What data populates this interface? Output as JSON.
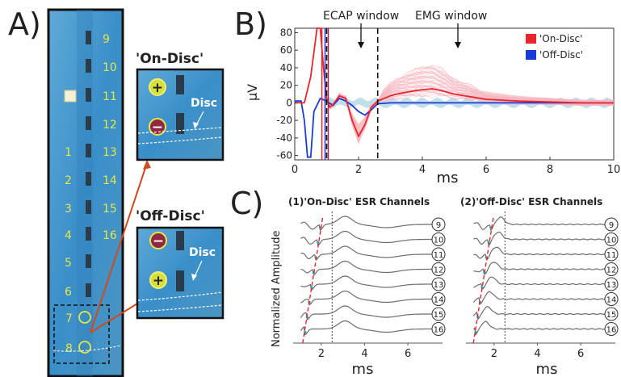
{
  "panelA": {
    "letter": "A)",
    "electrode_numbers_left": [
      "1",
      "2",
      "3",
      "4",
      "5",
      "6",
      "7",
      "8"
    ],
    "electrode_numbers_right": [
      "9",
      "10",
      "11",
      "12",
      "13",
      "14",
      "15",
      "16"
    ],
    "inset_on_title": "'On-Disc'",
    "inset_off_title": "'Off-Disc'",
    "disc_label": "Disc",
    "plus_sign": "+",
    "minus_sign": "−"
  },
  "panelB": {
    "letter": "B)",
    "ecap_label": "ECAP window",
    "emg_label": "EMG window",
    "ylabel": "μV",
    "xlabel": "ms",
    "legend_on": "'On-Disc'",
    "legend_off": "'Off-Disc'",
    "xticks": [
      "0",
      "2",
      "4",
      "6",
      "8",
      "10"
    ],
    "yticks": [
      "80",
      "60",
      "40",
      "20",
      "0",
      "-20",
      "-40",
      "-60"
    ]
  },
  "panelC": {
    "letter": "C)",
    "title1": "(1)'On-Disc' ESR Channels",
    "title2": "(2)'Off-Disc' ESR Channels",
    "ylabel": "Normalized Amplitude",
    "xlabel": "ms",
    "xticks": [
      "2",
      "4",
      "6"
    ],
    "channels": [
      "9",
      "10",
      "11",
      "12",
      "13",
      "14",
      "15",
      "16"
    ]
  },
  "colors": {
    "on_disc": "#e8262b",
    "off_disc": "#1a3ad8",
    "on_fill": "#f7b6c0",
    "off_fill": "#b9dce8",
    "electrode_bg": "#3a8fc9",
    "marker_yellow": "#e6e64a"
  },
  "chart_data": [
    {
      "type": "line",
      "xlabel": "ms",
      "ylabel": "μV",
      "xlim": [
        0,
        10
      ],
      "ylim": [
        -65,
        85
      ],
      "grid": false,
      "legend_placement": "top-right",
      "annotations": [
        {
          "text": "ECAP window",
          "x_range": [
            1.0,
            2.6
          ]
        },
        {
          "text": "EMG window",
          "x_range": [
            2.6,
            10
          ]
        }
      ],
      "series": [
        {
          "name": "'On-Disc'",
          "x": [
            0,
            0.3,
            0.5,
            0.7,
            0.8,
            0.9,
            1.0,
            1.1,
            1.2,
            1.4,
            1.6,
            1.8,
            2.0,
            2.2,
            2.4,
            2.6,
            2.8,
            3.0,
            3.2,
            3.5,
            3.8,
            4.0,
            4.3,
            4.6,
            5.0,
            5.5,
            6.0,
            7.0,
            8.0,
            9.0,
            10.0
          ],
          "y": [
            0,
            0,
            30,
            85,
            85,
            40,
            5,
            -5,
            -2,
            8,
            5,
            -20,
            -38,
            -25,
            -5,
            2,
            5,
            8,
            10,
            12,
            14,
            15,
            16,
            14,
            10,
            7,
            4,
            2,
            1,
            0,
            0
          ]
        },
        {
          "name": "'Off-Disc'",
          "x": [
            0,
            0.2,
            0.3,
            0.4,
            0.5,
            0.6,
            0.8,
            1.0,
            1.2,
            1.4,
            1.6,
            1.8,
            2.0,
            2.2,
            2.4,
            2.6,
            3.0,
            4.0,
            6.0,
            8.0,
            10.0
          ],
          "y": [
            2,
            2,
            -20,
            -62,
            -62,
            -10,
            5,
            2,
            -3,
            5,
            2,
            -3,
            -10,
            -14,
            -8,
            -1,
            0,
            0,
            0,
            0,
            0
          ]
        }
      ]
    },
    {
      "type": "line",
      "title": "(1)'On-Disc' ESR Channels",
      "xlabel": "ms",
      "ylabel": "Normalized Amplitude",
      "xlim": [
        0.7,
        7.6
      ],
      "series_labels": [
        "9",
        "10",
        "11",
        "12",
        "13",
        "14",
        "15",
        "16"
      ],
      "peak_onset_x": [
        1.95,
        1.85,
        1.75,
        1.65,
        1.55,
        1.45,
        1.35,
        1.25
      ],
      "vline_x": 2.5
    },
    {
      "type": "line",
      "title": "(2)'Off-Disc' ESR Channels",
      "xlabel": "ms",
      "ylabel": "",
      "xlim": [
        0.7,
        7.6
      ],
      "series_labels": [
        "9",
        "10",
        "11",
        "12",
        "13",
        "14",
        "15",
        "16"
      ],
      "peak_onset_x": [
        1.85,
        1.75,
        1.65,
        1.55,
        1.45,
        1.35,
        1.25,
        1.15
      ],
      "vline_x": 2.5
    }
  ]
}
